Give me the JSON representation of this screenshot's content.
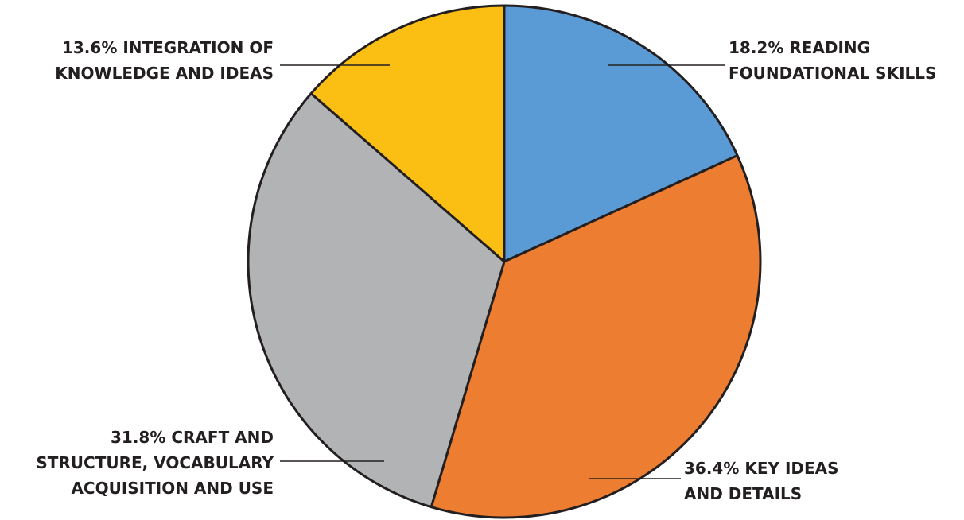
{
  "chart_data": {
    "type": "pie",
    "slices": [
      {
        "value": 18.2,
        "label_lines": [
          "18.2% READING",
          "FOUNDATIONAL SKILLS"
        ],
        "color": "#5b9bd5"
      },
      {
        "value": 36.4,
        "label_lines": [
          "36.4% KEY IDEAS",
          "AND DETAILS"
        ],
        "color": "#ed7d31"
      },
      {
        "value": 31.8,
        "label_lines": [
          "31.8% CRAFT AND",
          "STRUCTURE, VOCABULARY",
          "ACQUISITION AND USE"
        ],
        "color": "#b1b3b5"
      },
      {
        "value": 13.6,
        "label_lines": [
          "13.6% INTEGRATION OF",
          "KNOWLEDGE AND IDEAS"
        ],
        "color": "#fbbf14"
      }
    ],
    "start_position": "top",
    "direction": "clockwise",
    "legend": "none"
  }
}
